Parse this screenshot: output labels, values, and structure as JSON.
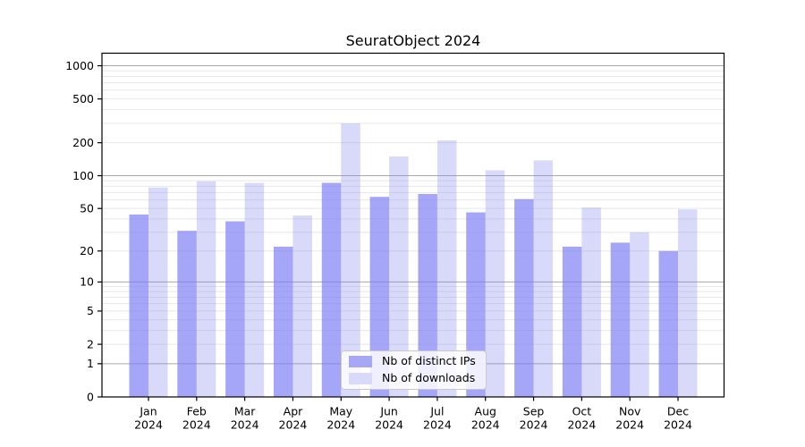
{
  "chart_data": {
    "type": "bar",
    "scale": "log1p",
    "title": "SeuratObject 2024",
    "categories": [
      "Jan 2024",
      "Feb 2024",
      "Mar 2024",
      "Apr 2024",
      "May 2024",
      "Jun 2024",
      "Jul 2024",
      "Aug 2024",
      "Sep 2024",
      "Oct 2024",
      "Nov 2024",
      "Dec 2024"
    ],
    "series": [
      {
        "name": "Nb of distinct IPs",
        "values": [
          44,
          31,
          38,
          22,
          86,
          64,
          68,
          46,
          61,
          22,
          24,
          20
        ]
      },
      {
        "name": "Nb of downloads",
        "values": [
          78,
          89,
          86,
          43,
          300,
          150,
          210,
          112,
          138,
          51,
          30,
          49
        ]
      }
    ],
    "yticks": [
      0,
      1,
      2,
      5,
      10,
      20,
      50,
      100,
      200,
      500,
      1000
    ],
    "ylim": [
      0,
      1300
    ],
    "grid": "on",
    "legend_position": "lower center"
  },
  "colors": {
    "ips_bar": "rgba(123,123,245,0.67)",
    "downloads_bar": "rgba(130,130,240,0.30)",
    "ips_swatch": "#a7a7f6",
    "downloads_swatch": "#d9d9fa",
    "grid_major": "#a9a9a9",
    "grid_minor": "#e8e8e8",
    "axis": "#000000"
  }
}
